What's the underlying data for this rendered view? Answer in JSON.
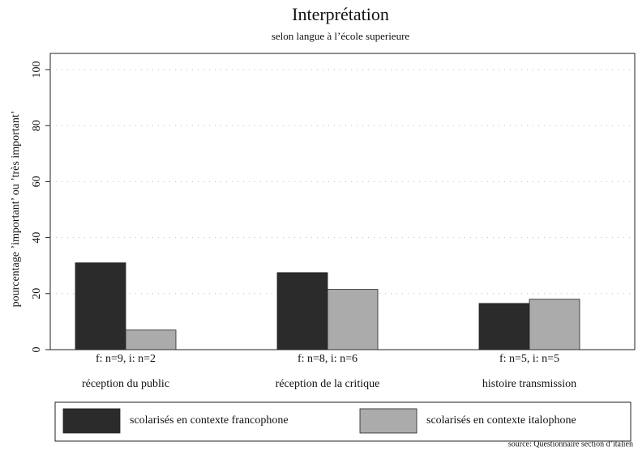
{
  "chart_data": {
    "type": "bar",
    "title": "Interprétation",
    "subtitle": "selon langue à l’école superieure",
    "y_label": "pourcentage ’important’ ou ’très important’",
    "categories": [
      "réception du public",
      "réception de la critique",
      "histoire transmission"
    ],
    "sample_labels": [
      "f: n=9, i: n=2",
      "f: n=8, i: n=6",
      "f: n=5, i: n=5"
    ],
    "series": [
      {
        "name": "scolarisés en contexte francophone",
        "color": "#2b2b2b",
        "values": [
          31,
          27.5,
          16.5
        ]
      },
      {
        "name": "scolarisés en contexte italophone",
        "color": "#ababab",
        "values": [
          7,
          21.5,
          18
        ]
      }
    ],
    "ylim": [
      0,
      100
    ],
    "yticks": [
      0,
      20,
      40,
      60,
      80,
      100
    ],
    "grid": true,
    "source": "source: Questionnaire section d’italien"
  }
}
